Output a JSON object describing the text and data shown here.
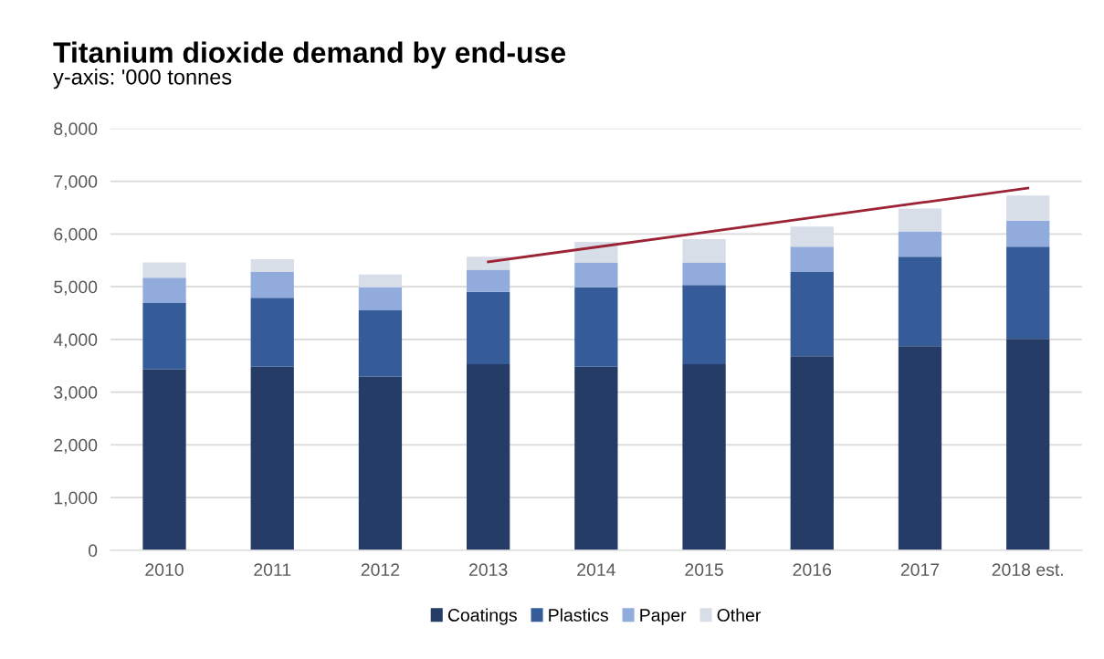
{
  "chart_data": {
    "type": "bar",
    "title": "Titanium dioxide demand by end-use",
    "subtitle": "y-axis: '000 tonnes",
    "categories": [
      "2010",
      "2011",
      "2012",
      "2013",
      "2014",
      "2015",
      "2016",
      "2017",
      "2018 est."
    ],
    "stacked": true,
    "series": [
      {
        "name": "Coatings",
        "color": "#253c66",
        "values": [
          3430,
          3480,
          3290,
          3530,
          3480,
          3530,
          3680,
          3870,
          4010
        ]
      },
      {
        "name": "Plastics",
        "color": "#355c99",
        "values": [
          1260,
          1310,
          1260,
          1370,
          1510,
          1500,
          1600,
          1700,
          1750
        ]
      },
      {
        "name": "Paper",
        "color": "#91acdc",
        "values": [
          480,
          490,
          440,
          420,
          470,
          430,
          480,
          480,
          490
        ]
      },
      {
        "name": "Other",
        "color": "#d7dee8",
        "values": [
          290,
          240,
          240,
          250,
          390,
          440,
          380,
          430,
          480
        ]
      },
      {
        "type": "line",
        "color": "#9b2335",
        "values": [
          null,
          null,
          null,
          5470,
          5750,
          6030,
          6310,
          6590,
          6870
        ]
      }
    ],
    "ylim": [
      0,
      8000
    ],
    "yticks": [
      {
        "value": 0,
        "label": "0"
      },
      {
        "value": 1000,
        "label": "1,000"
      },
      {
        "value": 2000,
        "label": "2,000"
      },
      {
        "value": 3000,
        "label": "3,000"
      },
      {
        "value": 4000,
        "label": "4,000"
      },
      {
        "value": 5000,
        "label": "5,000"
      },
      {
        "value": 6000,
        "label": "6,000"
      },
      {
        "value": 7000,
        "label": "7,000"
      },
      {
        "value": 8000,
        "label": "8,000"
      }
    ],
    "grid": "y",
    "legend": "bottom"
  }
}
